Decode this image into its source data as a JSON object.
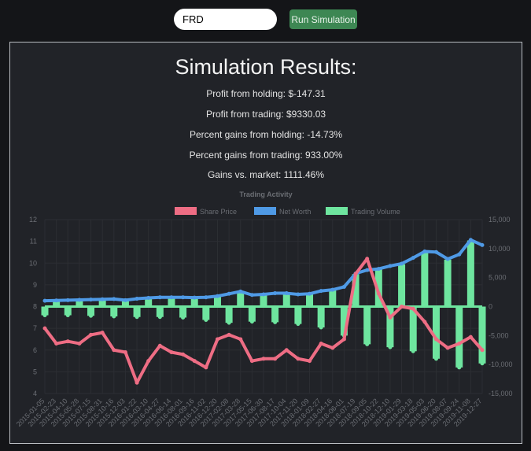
{
  "toolbar": {
    "ticker_value": "FRD",
    "run_label": "Run Simulation"
  },
  "results": {
    "title": "Simulation Results:",
    "stats": [
      "Profit from holding: $-147.31",
      "Profit from trading: $9330.03",
      "Percent gains from holding: -14.73%",
      "Percent gains from trading: 933.00%",
      "Gains vs. market: 1111.46%"
    ]
  },
  "chart_data": {
    "type": "line",
    "title": "Trading Activity",
    "legend_position": "top",
    "grid": true,
    "x": [
      "2015-01-05",
      "2015-02-23",
      "2015-04-10",
      "2015-05-28",
      "2015-07-15",
      "2015-08-31",
      "2015-10-16",
      "2015-12-03",
      "2016-01-22",
      "2016-03-10",
      "2016-04-27",
      "2016-06-14",
      "2016-08-01",
      "2016-09-16",
      "2016-11-02",
      "2016-12-20",
      "2017-02-08",
      "2017-03-28",
      "2017-05-15",
      "2017-06-30",
      "2017-08-17",
      "2017-10-04",
      "2017-11-20",
      "2018-01-09",
      "2018-02-27",
      "2018-04-16",
      "2018-06-01",
      "2018-07-19",
      "2018-09-05",
      "2018-10-22",
      "2018-12-10",
      "2019-01-29",
      "2019-03-18",
      "2019-05-03",
      "2019-06-20",
      "2019-08-07",
      "2019-09-24",
      "2019-11-08",
      "2019-12-27"
    ],
    "y_left": {
      "range": [
        4,
        12
      ],
      "ticks": [
        "4",
        "5",
        "6",
        "7",
        "8",
        "9",
        "10",
        "11",
        "12"
      ]
    },
    "y_right": {
      "range": [
        -15000,
        15000
      ],
      "ticks": [
        "-15,000",
        "-10,000",
        "-5,000",
        "0",
        "5,000",
        "10,000",
        "15,000"
      ]
    },
    "series": [
      {
        "name": "Share Price",
        "axis": "left",
        "color": "#ee6d84",
        "values": [
          7.0,
          6.3,
          6.4,
          6.3,
          6.7,
          6.8,
          6.0,
          5.9,
          4.5,
          5.5,
          6.2,
          5.9,
          5.8,
          5.5,
          5.2,
          6.5,
          6.7,
          6.5,
          5.5,
          5.6,
          5.6,
          6.0,
          5.6,
          5.5,
          6.3,
          6.1,
          6.5,
          9.5,
          10.2,
          8.6,
          7.5,
          8.0,
          7.9,
          7.3,
          6.5,
          6.1,
          6.3,
          6.6,
          6.0
        ]
      },
      {
        "name": "Net Worth",
        "axis": "right",
        "color": "#4f9ae6",
        "values": [
          1000,
          1050,
          1100,
          1150,
          1200,
          1250,
          1300,
          1100,
          1350,
          1500,
          1600,
          1600,
          1600,
          1550,
          1600,
          1800,
          2200,
          2600,
          2000,
          2100,
          2300,
          2300,
          2100,
          2200,
          2700,
          2900,
          3400,
          5700,
          6300,
          6500,
          7000,
          7400,
          8400,
          9500,
          9400,
          8200,
          9000,
          11500,
          10600
        ]
      },
      {
        "name": "Trading Volume",
        "axis": "right",
        "color": "#6ee59f",
        "values": [
          -1500,
          900,
          -1500,
          1000,
          -1600,
          1100,
          -1700,
          1000,
          -1800,
          1300,
          -1800,
          1500,
          -1900,
          1400,
          -2300,
          1700,
          -2800,
          2500,
          -2600,
          2000,
          -2700,
          2200,
          -3000,
          2100,
          -3600,
          2800,
          -5000,
          5600,
          -6500,
          6400,
          -7000,
          7300,
          -7700,
          9400,
          -9000,
          8100,
          -10500,
          11400,
          -9800
        ]
      }
    ]
  }
}
